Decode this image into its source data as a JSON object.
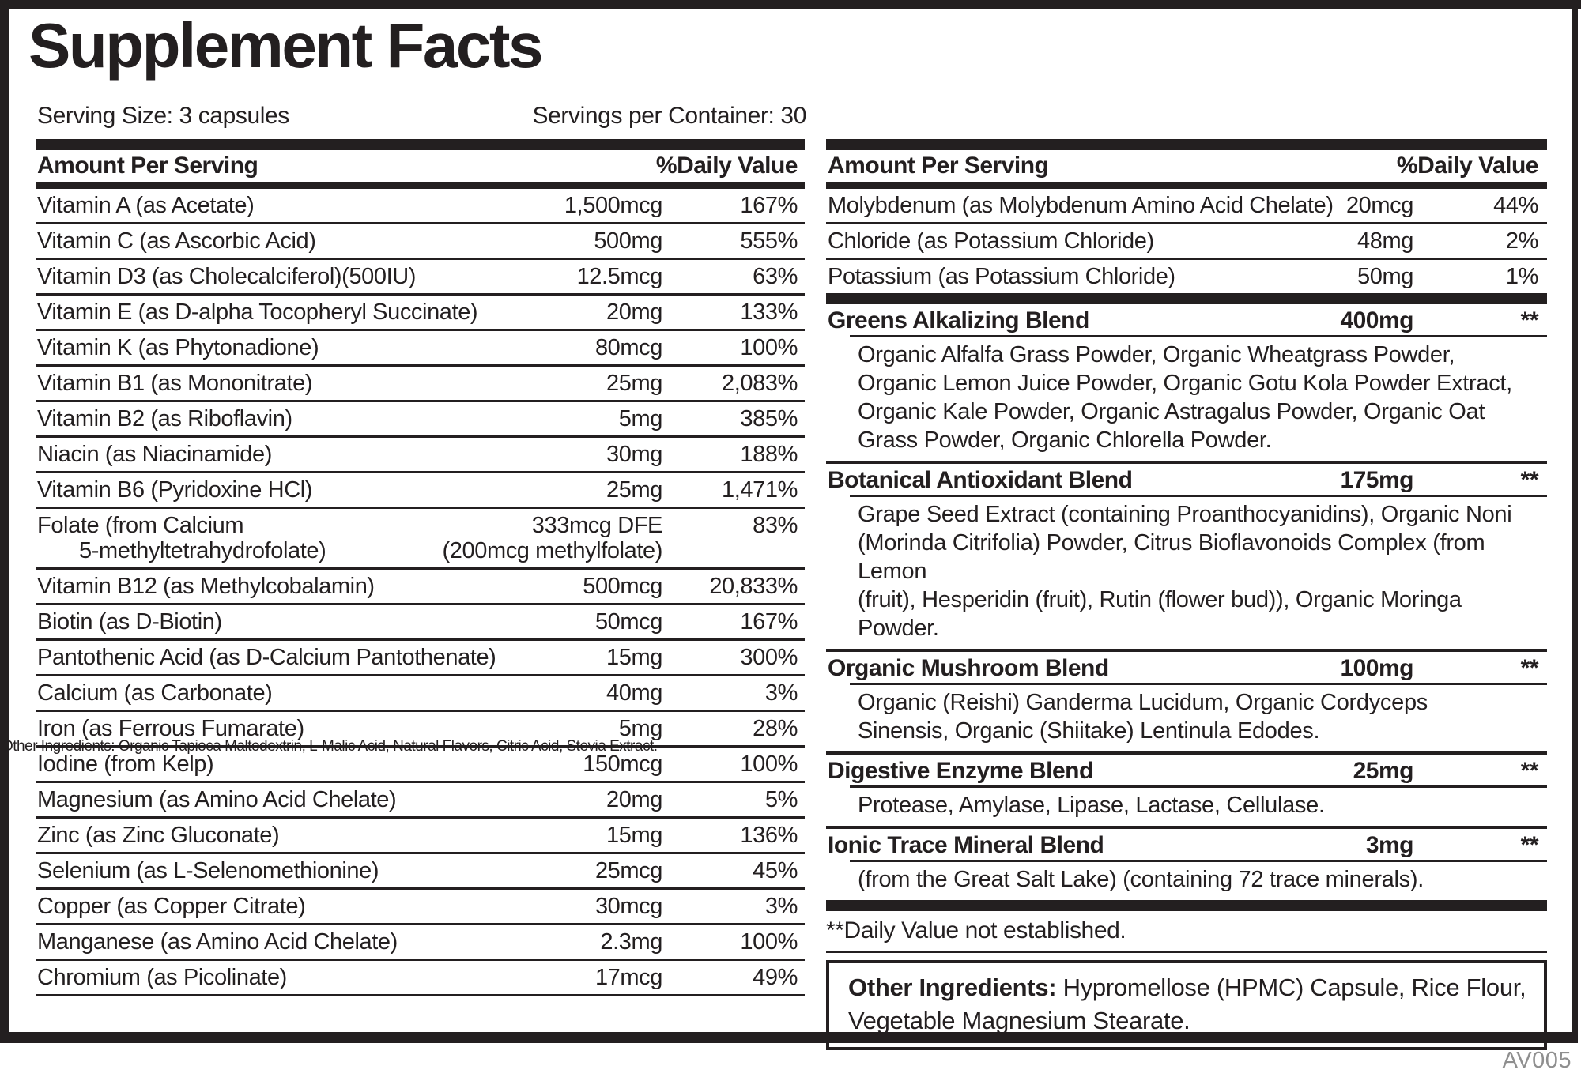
{
  "colors": {
    "ink": "#231f20",
    "code_gray": "#8f8f8f",
    "background": "#ffffff"
  },
  "header": {
    "title": "Supplement Facts",
    "serving_size": "Serving Size: 3 capsules",
    "servings_per_container": "Servings per Container: 30"
  },
  "columns": {
    "amount_header": "Amount Per Serving",
    "dv_header": "%Daily Value"
  },
  "left_rows": [
    {
      "name": "Vitamin A (as Acetate)",
      "amount": "1,500mcg",
      "dv": "167%"
    },
    {
      "name": "Vitamin C (as Ascorbic Acid)",
      "amount": "500mg",
      "dv": "555%"
    },
    {
      "name": "Vitamin D3 (as Cholecalciferol)(500IU)",
      "amount": "12.5mcg",
      "dv": "63%"
    },
    {
      "name": "Vitamin E (as D-alpha Tocopheryl Succinate)",
      "amount": "20mg",
      "dv": "133%"
    },
    {
      "name": "Vitamin K (as Phytonadione)",
      "amount": "80mcg",
      "dv": "100%"
    },
    {
      "name": "Vitamin B1 (as Mononitrate)",
      "amount": "25mg",
      "dv": "2,083%"
    },
    {
      "name": "Vitamin B2 (as Riboflavin)",
      "amount": "5mg",
      "dv": "385%"
    },
    {
      "name": "Niacin (as Niacinamide)",
      "amount": "30mg",
      "dv": "188%"
    },
    {
      "name": "Vitamin B6 (Pyridoxine HCl)",
      "amount": "25mg",
      "dv": "1,471%"
    },
    {
      "name": "Folate (from Calcium",
      "name2": "5-methyltetrahydrofolate)",
      "amount": "333mcg DFE",
      "amount2": "(200mcg methylfolate)",
      "dv": "83%"
    },
    {
      "name": "Vitamin B12 (as Methylcobalamin)",
      "amount": "500mcg",
      "dv": "20,833%"
    },
    {
      "name": "Biotin (as D-Biotin)",
      "amount": "50mcg",
      "dv": "167%"
    },
    {
      "name": "Pantothenic Acid (as D-Calcium Pantothenate)",
      "amount": "15mg",
      "dv": "300%"
    },
    {
      "name": "Calcium (as Carbonate)",
      "amount": "40mg",
      "dv": "3%"
    },
    {
      "name": "Iron (as Ferrous Fumarate)",
      "amount": "5mg",
      "dv": "28%"
    },
    {
      "name": "Iodine (from Kelp)",
      "amount": "150mcg",
      "dv": "100%"
    },
    {
      "name": "Magnesium (as Amino Acid Chelate)",
      "amount": "20mg",
      "dv": "5%"
    },
    {
      "name": "Zinc (as Zinc Gluconate)",
      "amount": "15mg",
      "dv": "136%"
    },
    {
      "name": "Selenium (as L-Selenomethionine)",
      "amount": "25mcg",
      "dv": "45%"
    },
    {
      "name": "Copper (as Copper Citrate)",
      "amount": "30mcg",
      "dv": "3%"
    },
    {
      "name": "Manganese (as Amino Acid Chelate)",
      "amount": "2.3mg",
      "dv": "100%"
    },
    {
      "name": "Chromium (as Picolinate)",
      "amount": "17mcg",
      "dv": "49%"
    }
  ],
  "overlap_text": "Other Ingredients: Organic Tapioca Maltodextrin, L-Malic Acid, Natural Flavors, Citric Acid, Stevia Extract.",
  "right_rows": [
    {
      "name": "Molybdenum (as Molybdenum Amino Acid Chelate)",
      "amount": "20mcg",
      "dv": "44%"
    },
    {
      "name": "Chloride (as Potassium Chloride)",
      "amount": "48mg",
      "dv": "2%"
    },
    {
      "name": "Potassium (as Potassium Chloride)",
      "amount": "50mg",
      "dv": "1%"
    }
  ],
  "blends": [
    {
      "name": "Greens Alkalizing Blend",
      "amount": "400mg",
      "dv": "**",
      "desc": "Organic Alfalfa Grass Powder, Organic Wheatgrass Powder,\nOrganic Lemon Juice Powder, Organic Gotu Kola Powder Extract,\nOrganic Kale Powder, Organic Astragalus Powder, Organic Oat\nGrass Powder, Organic Chlorella Powder."
    },
    {
      "name": "Botanical Antioxidant Blend",
      "amount": "175mg",
      "dv": "**",
      "desc": "Grape Seed Extract (containing Proanthocyanidins), Organic Noni\n(Morinda Citrifolia) Powder, Citrus Bioflavonoids Complex (from Lemon\n(fruit), Hesperidin (fruit), Rutin (flower bud)), Organic Moringa Powder."
    },
    {
      "name": "Organic Mushroom Blend",
      "amount": "100mg",
      "dv": "**",
      "desc": "Organic (Reishi) Ganderma Lucidum, Organic Cordyceps\nSinensis, Organic (Shiitake) Lentinula Edodes."
    },
    {
      "name": "Digestive Enzyme Blend",
      "amount": "25mg",
      "dv": "**",
      "desc": "Protease, Amylase, Lipase, Lactase, Cellulase."
    },
    {
      "name": "Ionic Trace Mineral Blend",
      "amount": "3mg",
      "dv": "**",
      "desc": "(from the Great Salt Lake) (containing 72 trace minerals)."
    }
  ],
  "footnote": "**Daily Value not established.",
  "other_ingredients": {
    "label": "Other Ingredients:",
    "text": "Hypromellose (HPMC) Capsule, Rice Flour,\nVegetable Magnesium Stearate."
  },
  "code": "AV005"
}
